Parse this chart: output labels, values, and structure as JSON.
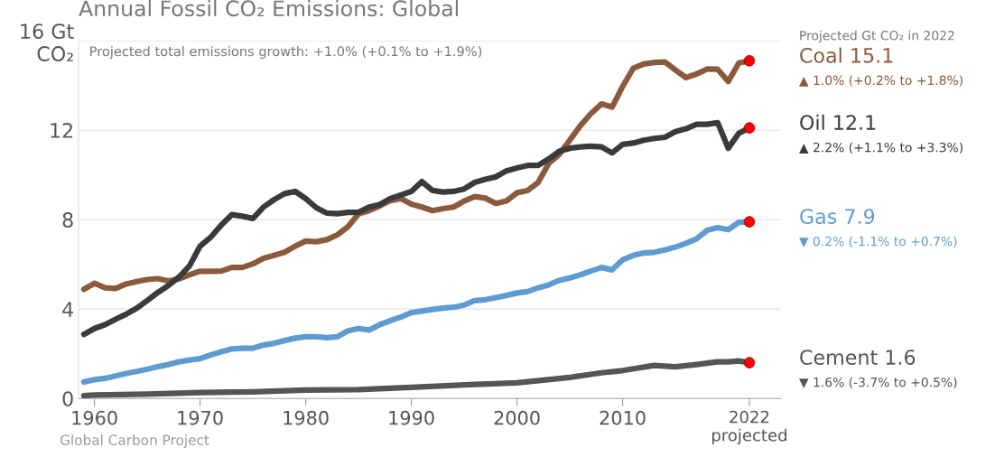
{
  "chart_data": {
    "type": "line",
    "title": "Annual Fossil CO₂ Emissions: Global",
    "subtitle": "Projected total emissions growth: +1.0% (+0.1% to +1.9%)",
    "annotations": [
      "Projected Gt CO₂ in 2022",
      "▲ 1.0% (+0.2% to +1.8%)",
      "▲ 2.2% (+1.1% to +3.3%)",
      "▼ 0.2% (-1.1% to +0.7%)",
      "▼ 1.6% (-3.7% to +0.5%)",
      "Global Carbon Project"
    ],
    "xlim": [
      1958.5,
      2025
    ],
    "xticks": [
      1960,
      1970,
      1980,
      1990,
      2000,
      2010,
      {
        "value": 2022,
        "label": "2022\nprojected"
      }
    ],
    "ylim": [
      0,
      16
    ],
    "yticks": [
      0,
      4,
      8,
      12,
      {
        "value": 16,
        "label": "16 Gt\nCO₂"
      }
    ],
    "grid": "y",
    "line_style": "solid",
    "series": [
      {
        "name": "Coal 15.1",
        "color": "#8b5a3c",
        "x": [
          1959,
          1960,
          1961,
          1962,
          1963,
          1964,
          1965,
          1966,
          1967,
          1968,
          1969,
          1970,
          1971,
          1972,
          1973,
          1974,
          1975,
          1976,
          1977,
          1978,
          1979,
          1980,
          1981,
          1982,
          1983,
          1984,
          1985,
          1986,
          1987,
          1988,
          1989,
          1990,
          1991,
          1992,
          1993,
          1994,
          1995,
          1996,
          1997,
          1998,
          1999,
          2000,
          2001,
          2002,
          2003,
          2004,
          2005,
          2006,
          2007,
          2008,
          2009,
          2010,
          2011,
          2012,
          2013,
          2014,
          2015,
          2016,
          2017,
          2018,
          2019,
          2020,
          2021,
          2022
        ],
        "values": [
          4.89,
          5.15,
          4.95,
          4.92,
          5.12,
          5.23,
          5.32,
          5.36,
          5.26,
          5.35,
          5.53,
          5.69,
          5.69,
          5.7,
          5.86,
          5.86,
          6.02,
          6.27,
          6.4,
          6.54,
          6.81,
          7.04,
          7.01,
          7.1,
          7.32,
          7.68,
          8.26,
          8.4,
          8.61,
          8.85,
          8.94,
          8.69,
          8.56,
          8.4,
          8.49,
          8.56,
          8.83,
          9.03,
          8.96,
          8.72,
          8.83,
          9.2,
          9.3,
          9.66,
          10.51,
          10.92,
          11.55,
          12.2,
          12.74,
          13.17,
          13.03,
          13.95,
          14.76,
          14.96,
          15.03,
          15.05,
          14.69,
          14.35,
          14.51,
          14.73,
          14.72,
          14.18,
          15.0,
          15.1
        ]
      },
      {
        "name": "Oil 12.1",
        "color": "#3a3a3a",
        "x": [
          1959,
          1960,
          1961,
          1962,
          1963,
          1964,
          1965,
          1966,
          1967,
          1968,
          1969,
          1970,
          1971,
          1972,
          1973,
          1974,
          1975,
          1976,
          1977,
          1978,
          1979,
          1980,
          1981,
          1982,
          1983,
          1984,
          1985,
          1986,
          1987,
          1988,
          1989,
          1990,
          1991,
          1992,
          1993,
          1994,
          1995,
          1996,
          1997,
          1998,
          1999,
          2000,
          2001,
          2002,
          2003,
          2004,
          2005,
          2006,
          2007,
          2008,
          2009,
          2010,
          2011,
          2012,
          2013,
          2014,
          2015,
          2016,
          2017,
          2018,
          2019,
          2020,
          2021,
          2022
        ],
        "values": [
          2.87,
          3.13,
          3.3,
          3.54,
          3.77,
          4.04,
          4.38,
          4.74,
          5.05,
          5.43,
          5.93,
          6.81,
          7.21,
          7.75,
          8.22,
          8.15,
          8.05,
          8.56,
          8.89,
          9.16,
          9.26,
          8.94,
          8.53,
          8.29,
          8.26,
          8.32,
          8.33,
          8.56,
          8.67,
          8.94,
          9.1,
          9.26,
          9.7,
          9.3,
          9.23,
          9.26,
          9.37,
          9.66,
          9.8,
          9.91,
          10.18,
          10.31,
          10.42,
          10.42,
          10.71,
          11.05,
          11.19,
          11.25,
          11.28,
          11.25,
          10.98,
          11.36,
          11.42,
          11.55,
          11.63,
          11.68,
          11.93,
          12.06,
          12.26,
          12.26,
          12.33,
          11.19,
          11.86,
          12.1
        ]
      },
      {
        "name": "Gas 7.9",
        "color": "#5f9bd1",
        "x": [
          1959,
          1960,
          1961,
          1962,
          1963,
          1964,
          1965,
          1966,
          1967,
          1968,
          1969,
          1970,
          1971,
          1972,
          1973,
          1974,
          1975,
          1976,
          1977,
          1978,
          1979,
          1980,
          1981,
          1982,
          1983,
          1984,
          1985,
          1986,
          1987,
          1988,
          1989,
          1990,
          1991,
          1992,
          1993,
          1994,
          1995,
          1996,
          1997,
          1998,
          1999,
          2000,
          2001,
          2002,
          2003,
          2004,
          2005,
          2006,
          2007,
          2008,
          2009,
          2010,
          2011,
          2012,
          2013,
          2014,
          2015,
          2016,
          2017,
          2018,
          2019,
          2020,
          2021,
          2022
        ],
        "values": [
          0.74,
          0.84,
          0.9,
          1.01,
          1.12,
          1.21,
          1.31,
          1.42,
          1.52,
          1.64,
          1.72,
          1.78,
          1.95,
          2.09,
          2.22,
          2.25,
          2.25,
          2.39,
          2.47,
          2.59,
          2.7,
          2.76,
          2.76,
          2.72,
          2.76,
          3.03,
          3.13,
          3.06,
          3.3,
          3.48,
          3.64,
          3.84,
          3.91,
          3.98,
          4.04,
          4.08,
          4.18,
          4.38,
          4.42,
          4.51,
          4.61,
          4.72,
          4.78,
          4.95,
          5.08,
          5.28,
          5.39,
          5.53,
          5.7,
          5.86,
          5.75,
          6.2,
          6.4,
          6.51,
          6.54,
          6.64,
          6.77,
          6.94,
          7.14,
          7.52,
          7.64,
          7.55,
          7.88,
          7.9
        ]
      },
      {
        "name": "Cement 1.6",
        "color": "#555555",
        "x": [
          1959,
          1960,
          1965,
          1970,
          1975,
          1980,
          1985,
          1990,
          1995,
          2000,
          2005,
          2008,
          2010,
          2013,
          2015,
          2017,
          2019,
          2020,
          2021,
          2022
        ],
        "values": [
          0.13,
          0.16,
          0.2,
          0.27,
          0.3,
          0.38,
          0.4,
          0.5,
          0.61,
          0.7,
          0.94,
          1.15,
          1.25,
          1.48,
          1.42,
          1.52,
          1.64,
          1.64,
          1.68,
          1.6
        ]
      },
      {
        "type": "scatter",
        "color": "#ff0000",
        "x": [
          2022,
          2022,
          2022,
          2022
        ],
        "values": [
          15.1,
          12.1,
          7.9,
          1.6
        ]
      }
    ]
  }
}
